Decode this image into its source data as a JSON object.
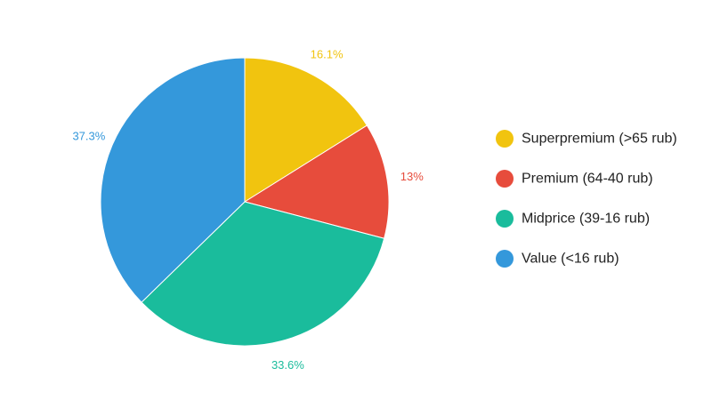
{
  "chart_data": {
    "type": "pie",
    "title": "",
    "categories": [
      "Superpremium (>65 rub)",
      "Premium (64-40 rub)",
      "Midprice (39-16 rub)",
      "Value (<16 rub)"
    ],
    "values": [
      16.1,
      13,
      33.6,
      37.3
    ],
    "value_labels": [
      "16.1%",
      "13%",
      "33.6%",
      "37.3%"
    ],
    "colors": [
      "#f1c40f",
      "#e74c3c",
      "#1abc9c",
      "#3498db"
    ],
    "start_angle": "top (12 o'clock)",
    "direction": "clockwise",
    "legend_position": "right"
  }
}
